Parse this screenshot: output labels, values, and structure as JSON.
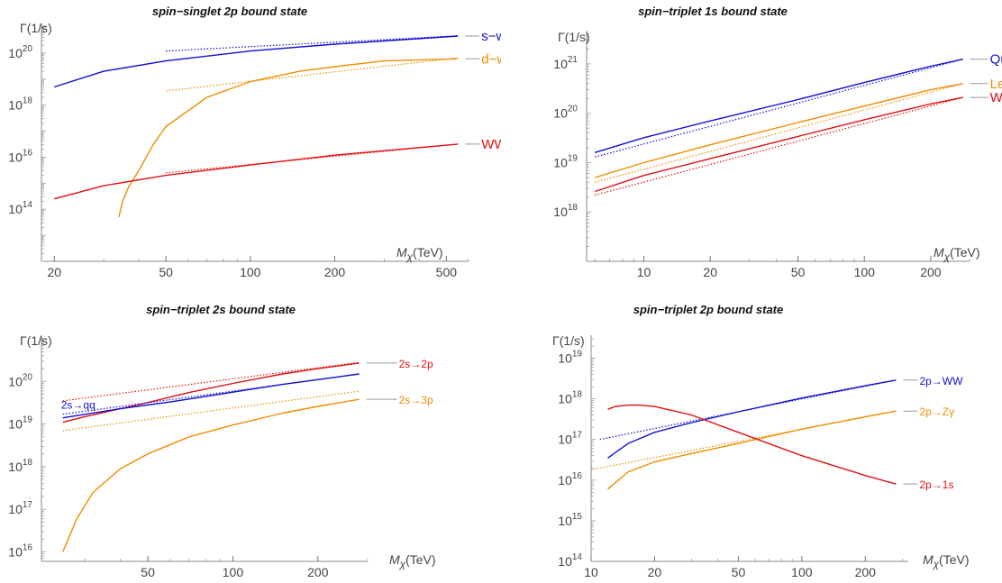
{
  "chart_data": [
    {
      "type": "line",
      "title": "spin−singlet 2p bound state",
      "ylabel": "Γ(1/s)",
      "xlabel_sym": "M",
      "xlabel_sub": "χ",
      "xlabel_unit": "(TeV)",
      "xscale": "log",
      "yscale": "log",
      "xlim": [
        18,
        600
      ],
      "ylim": [
        1000000000000.0,
        1e+21
      ],
      "xticks": [
        20,
        50,
        100,
        200,
        500
      ],
      "yticks": [
        100000000000000.0,
        1e+16,
        1e+18,
        1e+20
      ],
      "ytick_labels": [
        {
          "base": "10",
          "exp": "14"
        },
        {
          "base": "10",
          "exp": "16"
        },
        {
          "base": "10",
          "exp": "18"
        },
        {
          "base": "10",
          "exp": "20"
        }
      ],
      "series": [
        {
          "name": "s−wave",
          "color": "#1010d0",
          "x": [
            20,
            30,
            50,
            100,
            200,
            550
          ],
          "y": [
            5e+18,
            2e+19,
            5e+19,
            1.2e+20,
            2.2e+20,
            4.5e+20
          ],
          "ref_x": [
            50,
            550
          ],
          "ref_y": [
            1.2e+20,
            4.6e+20
          ]
        },
        {
          "name": "d−wave",
          "color": "#f08c00",
          "x": [
            34,
            35,
            37,
            40,
            45,
            50,
            70,
            100,
            150,
            200,
            300,
            550
          ],
          "y": [
            50000000000000.0,
            200000000000000.0,
            800000000000000.0,
            3000000000000000.0,
            3e+16,
            1.5e+17,
            2e+18,
            8e+18,
            2e+19,
            3e+19,
            5e+19,
            6e+19
          ],
          "ref_x": [
            50,
            550
          ],
          "ref_y": [
            3.5e+18,
            6.5e+19
          ]
        },
        {
          "name": "WW",
          "color": "#e01010",
          "x": [
            20,
            30,
            50,
            100,
            200,
            550
          ],
          "y": [
            250000000000000.0,
            800000000000000.0,
            2000000000000000.0,
            5000000000000000.0,
            1.2e+16,
            3.2e+16
          ],
          "ref_x": [
            50,
            550
          ],
          "ref_y": [
            2500000000000000.0,
            3.2e+16
          ]
        }
      ]
    },
    {
      "type": "line",
      "title": "spin−triplet 1s bound state",
      "ylabel": "Γ(1/s)",
      "xlabel_sym": "M",
      "xlabel_sub": "χ",
      "xlabel_unit": "(TeV)",
      "xscale": "log",
      "yscale": "log",
      "xlim": [
        5.5,
        300
      ],
      "ylim": [
        1e+17,
        4e+21
      ],
      "xticks": [
        10,
        20,
        50,
        100,
        200
      ],
      "yticks": [
        1e+18,
        1e+19,
        1e+20,
        1e+21
      ],
      "ytick_labels": [
        {
          "base": "10",
          "exp": "18"
        },
        {
          "base": "10",
          "exp": "19"
        },
        {
          "base": "10",
          "exp": "20"
        },
        {
          "base": "10",
          "exp": "21"
        }
      ],
      "series": [
        {
          "name": "Quarks",
          "color": "#1010d0",
          "x": [
            6,
            10,
            20,
            50,
            100,
            200,
            280
          ],
          "y": [
            1.6e+19,
            3.2e+19,
            7e+19,
            1.9e+20,
            4.2e+20,
            9e+20,
            1.25e+21
          ],
          "ref_x": [
            6,
            280
          ],
          "ref_y": [
            1.3e+19,
            1.25e+21
          ]
        },
        {
          "name": "Leptons",
          "color": "#f08c00",
          "x": [
            6,
            10,
            20,
            50,
            100,
            200,
            280
          ],
          "y": [
            5e+18,
            1e+19,
            2.3e+19,
            6.5e+19,
            1.4e+20,
            3e+20,
            4e+20
          ],
          "ref_x": [
            6,
            280
          ],
          "ref_y": [
            4e+18,
            4e+20
          ]
        },
        {
          "name": "WW, Zh",
          "color": "#e01010",
          "x": [
            6,
            10,
            20,
            50,
            100,
            200,
            280
          ],
          "y": [
            2.6e+18,
            5.5e+18,
            1.2e+19,
            3.4e+19,
            7.4e+19,
            1.55e+20,
            2.1e+20
          ],
          "ref_x": [
            6,
            280
          ],
          "ref_y": [
            2.2e+18,
            2.1e+20
          ]
        }
      ]
    },
    {
      "type": "line",
      "title": "spin−triplet 2s bound state",
      "ylabel": "Γ(1/s)",
      "xlabel_sym": "M",
      "xlabel_sub": "χ",
      "xlabel_unit": "(TeV)",
      "xscale": "log",
      "yscale": "log",
      "xlim": [
        21,
        300
      ],
      "ylim": [
        6000000000000000.0,
        1e+21
      ],
      "xticks": [
        50,
        100,
        200
      ],
      "yticks": [
        1e+16,
        1e+17,
        1e+18,
        1e+19,
        1e+20
      ],
      "ytick_labels": [
        {
          "base": "10",
          "exp": "16"
        },
        {
          "base": "10",
          "exp": "17"
        },
        {
          "base": "10",
          "exp": "18"
        },
        {
          "base": "10",
          "exp": "19"
        },
        {
          "base": "10",
          "exp": "20"
        }
      ],
      "series": [
        {
          "name": "2s→2p",
          "color": "#e01010",
          "x": [
            25,
            30,
            40,
            50,
            70,
            100,
            150,
            200,
            280
          ],
          "y": [
            1.1e+19,
            1.5e+19,
            2.3e+19,
            3.2e+19,
            5.5e+19,
            9e+19,
            1.5e+20,
            2e+20,
            2.7e+20
          ],
          "ref_x": [
            25,
            280
          ],
          "ref_y": [
            3.5e+19,
            2.8e+20
          ]
        },
        {
          "name": "2s→3p",
          "color": "#f08c00",
          "x": [
            25,
            28,
            32,
            40,
            50,
            70,
            100,
            150,
            200,
            280
          ],
          "y": [
            1e+16,
            6e+16,
            2.5e+17,
            9e+17,
            2e+18,
            5e+18,
            9.5e+18,
            1.8e+19,
            2.6e+19,
            3.8e+19
          ],
          "ref_x": [
            25,
            280
          ],
          "ref_y": [
            7e+18,
            5.9e+19
          ]
        },
        {
          "name": "2s→qq",
          "color": "#1010d0",
          "x": [
            25,
            40,
            60,
            100,
            150,
            200,
            280
          ],
          "y": [
            1.4e+19,
            2.3e+19,
            3.3e+19,
            5.6e+19,
            8.5e+19,
            1.1e+20,
            1.5e+20
          ],
          "ref_x": [
            25,
            280
          ],
          "ref_y": [
            1.7e+19,
            1.5e+20
          ]
        }
      ]
    },
    {
      "type": "line",
      "title": "spin−triplet 2p bound state",
      "ylabel": "Γ(1/s)",
      "xlabel_sym": "M",
      "xlabel_sub": "χ",
      "xlabel_unit": "(TeV)",
      "xscale": "log",
      "yscale": "log",
      "xlim": [
        10,
        320
      ],
      "ylim": [
        100000000000000.0,
        3e+19
      ],
      "xticks": [
        10,
        20,
        50,
        100,
        200
      ],
      "yticks": [
        100000000000000.0,
        1000000000000000.0,
        1e+16,
        1e+17,
        1e+18,
        1e+19
      ],
      "ytick_labels": [
        {
          "base": "10",
          "exp": "14"
        },
        {
          "base": "10",
          "exp": "15"
        },
        {
          "base": "10",
          "exp": "16"
        },
        {
          "base": "10",
          "exp": "17"
        },
        {
          "base": "10",
          "exp": "18"
        },
        {
          "base": "10",
          "exp": "19"
        }
      ],
      "series": [
        {
          "name": "2p→WW",
          "color": "#1010d0",
          "x": [
            12,
            15,
            20,
            30,
            50,
            100,
            200,
            280
          ],
          "y": [
            3.5e+16,
            8e+16,
            1.5e+17,
            2.6e+17,
            4.8e+17,
            1.05e+18,
            2.1e+18,
            2.9e+18
          ],
          "ref_x": [
            11,
            280
          ],
          "ref_y": [
            1e+17,
            2.9e+18
          ]
        },
        {
          "name": "2p→Zγ",
          "color": "#f08c00",
          "x": [
            12,
            15,
            20,
            30,
            50,
            100,
            200,
            280
          ],
          "y": [
            6000000000000000.0,
            1.6e+16,
            2.8e+16,
            4.5e+16,
            8e+16,
            1.8e+17,
            3.6e+17,
            5e+17
          ],
          "ref_x": [
            10,
            280
          ],
          "ref_y": [
            1.8e+16,
            5e+17
          ]
        },
        {
          "name": "2p→1s",
          "color": "#e01010",
          "x": [
            12,
            13,
            15,
            17,
            20,
            30,
            50,
            100,
            200,
            280
          ],
          "y": [
            5.5e+17,
            6.5e+17,
            7e+17,
            7e+17,
            6.5e+17,
            4e+17,
            1.5e+17,
            4e+16,
            1.3e+16,
            8000000000000000.0
          ]
        }
      ]
    }
  ]
}
